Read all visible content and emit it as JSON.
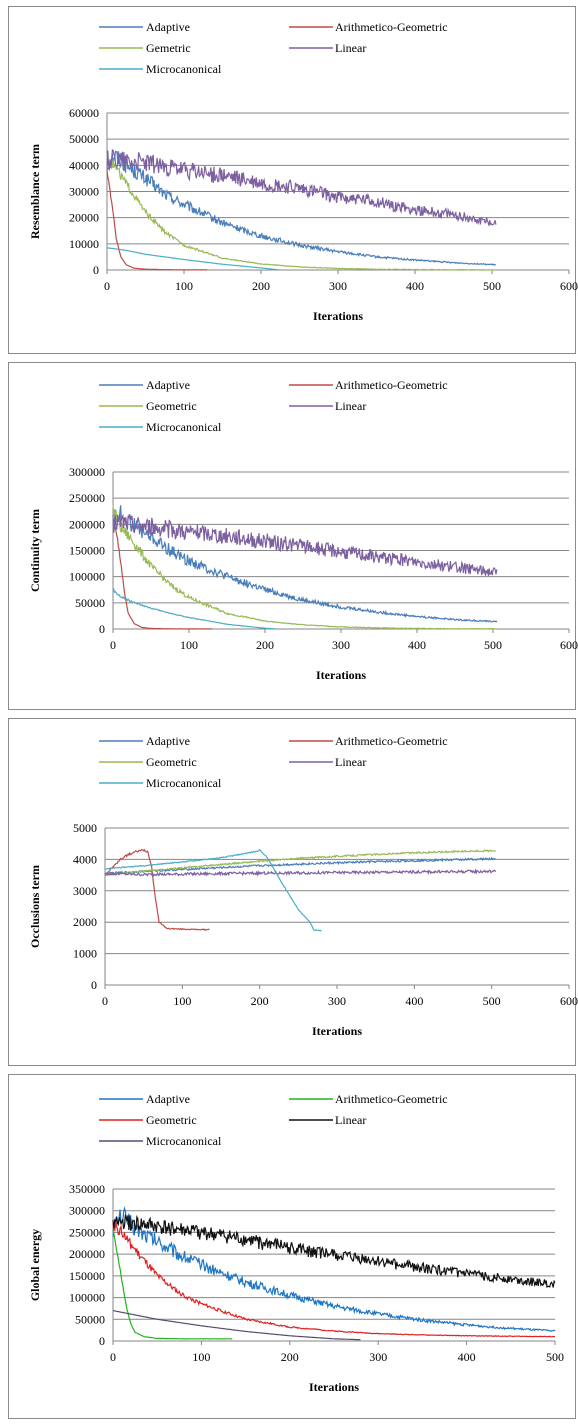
{
  "chart_data": [
    {
      "type": "line",
      "xlabel": "Iterations",
      "ylabel": "Resemblance term",
      "xlim": [
        0,
        600
      ],
      "ylim": [
        0,
        60000
      ],
      "xticks": [
        0,
        100,
        200,
        300,
        400,
        500,
        600
      ],
      "yticks": [
        0,
        10000,
        20000,
        30000,
        40000,
        50000,
        60000
      ],
      "grid": "horizontal",
      "legend": "top",
      "series": [
        {
          "name": "Adaptive",
          "color": "#4a7ebb",
          "noise": 0.08,
          "x": [
            0,
            10,
            25,
            50,
            75,
            100,
            150,
            200,
            250,
            300,
            350,
            400,
            450,
            505
          ],
          "y": [
            40000,
            44000,
            40000,
            35000,
            29000,
            25000,
            18000,
            13000,
            9500,
            7000,
            5000,
            3800,
            2800,
            2000
          ]
        },
        {
          "name": "Arithmetico-Geometric",
          "color": "#be4b48",
          "noise": 0.02,
          "x": [
            0,
            3,
            8,
            12,
            18,
            25,
            35,
            50,
            80,
            130
          ],
          "y": [
            38000,
            32000,
            22000,
            12000,
            5000,
            2000,
            700,
            300,
            100,
            50
          ]
        },
        {
          "name": "Gemetric",
          "color": "#98b954",
          "noise": 0.05,
          "x": [
            0,
            10,
            25,
            50,
            75,
            100,
            150,
            200,
            250,
            300,
            350,
            400,
            450,
            505
          ],
          "y": [
            42000,
            40000,
            33000,
            22000,
            14500,
            9500,
            4500,
            2300,
            1200,
            600,
            300,
            150,
            80,
            50
          ]
        },
        {
          "name": "Linear",
          "color": "#7d60a0",
          "noise": 0.09,
          "x": [
            0,
            10,
            25,
            50,
            100,
            150,
            200,
            250,
            300,
            350,
            400,
            450,
            505
          ],
          "y": [
            42000,
            43000,
            42000,
            41000,
            38000,
            36000,
            33000,
            31000,
            28000,
            26000,
            23000,
            21000,
            18000
          ]
        },
        {
          "name": "Microcanonical",
          "color": "#4bacc6",
          "noise": 0.0,
          "x": [
            0,
            25,
            50,
            100,
            150,
            200,
            225
          ],
          "y": [
            8500,
            7500,
            6000,
            4000,
            2200,
            800,
            0
          ]
        }
      ]
    },
    {
      "type": "line",
      "xlabel": "Iterations",
      "ylabel": "Continuity term",
      "xlim": [
        0,
        600
      ],
      "ylim": [
        0,
        300000
      ],
      "xticks": [
        0,
        100,
        200,
        300,
        400,
        500,
        600
      ],
      "yticks": [
        0,
        50000,
        100000,
        150000,
        200000,
        250000,
        300000
      ],
      "grid": "horizontal",
      "legend": "top",
      "series": [
        {
          "name": "Adaptive",
          "color": "#4a7ebb",
          "noise": 0.08,
          "x": [
            0,
            10,
            25,
            50,
            75,
            100,
            150,
            200,
            250,
            300,
            350,
            400,
            450,
            505
          ],
          "y": [
            210000,
            220000,
            200000,
            175000,
            150000,
            130000,
            100000,
            75000,
            55000,
            42000,
            32000,
            24000,
            18000,
            14000
          ]
        },
        {
          "name": "Arithmetico-Geometric",
          "color": "#be4b48",
          "noise": 0.02,
          "x": [
            0,
            5,
            10,
            15,
            20,
            28,
            38,
            50,
            80,
            130
          ],
          "y": [
            210000,
            180000,
            130000,
            70000,
            30000,
            10000,
            3000,
            1000,
            300,
            100
          ]
        },
        {
          "name": "Geometric",
          "color": "#98b954",
          "noise": 0.06,
          "x": [
            0,
            10,
            25,
            50,
            75,
            100,
            150,
            200,
            250,
            300,
            350,
            400,
            450,
            505
          ],
          "y": [
            230000,
            195000,
            170000,
            120000,
            85000,
            60000,
            30000,
            15000,
            8000,
            4000,
            2000,
            1000,
            500,
            300
          ]
        },
        {
          "name": "Linear",
          "color": "#7d60a0",
          "noise": 0.09,
          "x": [
            0,
            10,
            25,
            50,
            100,
            150,
            200,
            250,
            300,
            350,
            400,
            450,
            505
          ],
          "y": [
            200000,
            205000,
            200000,
            195000,
            185000,
            178000,
            168000,
            158000,
            148000,
            138000,
            128000,
            118000,
            108000
          ]
        },
        {
          "name": "Microcanonical",
          "color": "#4bacc6",
          "noise": 0.03,
          "x": [
            0,
            10,
            25,
            50,
            75,
            100,
            150,
            200,
            215
          ],
          "y": [
            75000,
            62000,
            52000,
            40000,
            30000,
            22000,
            9000,
            1500,
            0
          ]
        }
      ]
    },
    {
      "type": "line",
      "xlabel": "Iterations",
      "ylabel": "Occlusions term",
      "xlim": [
        0,
        600
      ],
      "ylim": [
        0,
        5000
      ],
      "xticks": [
        0,
        100,
        200,
        300,
        400,
        500,
        600
      ],
      "yticks": [
        0,
        1000,
        2000,
        3000,
        4000,
        5000
      ],
      "grid": "horizontal",
      "legend": "top",
      "series": [
        {
          "name": "Adaptive",
          "color": "#4a7ebb",
          "noise": 0.008,
          "x": [
            0,
            50,
            100,
            150,
            200,
            250,
            300,
            350,
            400,
            450,
            505
          ],
          "y": [
            3550,
            3620,
            3680,
            3740,
            3800,
            3850,
            3890,
            3930,
            3960,
            3990,
            4020
          ]
        },
        {
          "name": "Arithmetico-Geometric",
          "color": "#be4b48",
          "noise": 0.008,
          "x": [
            0,
            10,
            20,
            30,
            40,
            50,
            55,
            60,
            65,
            70,
            80,
            100,
            135
          ],
          "y": [
            3500,
            3750,
            4000,
            4150,
            4250,
            4300,
            4250,
            3800,
            2800,
            2000,
            1800,
            1780,
            1760
          ]
        },
        {
          "name": "Geometric",
          "color": "#98b954",
          "noise": 0.006,
          "x": [
            0,
            50,
            100,
            150,
            200,
            250,
            300,
            350,
            400,
            450,
            505
          ],
          "y": [
            3500,
            3620,
            3730,
            3840,
            3940,
            4030,
            4100,
            4160,
            4210,
            4250,
            4280
          ]
        },
        {
          "name": "Linear",
          "color": "#7d60a0",
          "noise": 0.012,
          "x": [
            0,
            50,
            100,
            150,
            200,
            250,
            300,
            350,
            400,
            450,
            505
          ],
          "y": [
            3550,
            3520,
            3530,
            3550,
            3560,
            3570,
            3580,
            3590,
            3600,
            3610,
            3620
          ]
        },
        {
          "name": "Microcanonical",
          "color": "#4bacc6",
          "noise": 0.004,
          "x": [
            0,
            50,
            100,
            150,
            195,
            200,
            210,
            230,
            250,
            265,
            270,
            280
          ],
          "y": [
            3700,
            3800,
            3920,
            4050,
            4250,
            4300,
            4050,
            3200,
            2400,
            2000,
            1750,
            1730
          ]
        }
      ]
    },
    {
      "type": "line",
      "xlabel": "Iterations",
      "ylabel": "Global energy",
      "xlim": [
        0,
        500
      ],
      "ylim": [
        0,
        350000
      ],
      "xticks": [
        0,
        100,
        200,
        300,
        400,
        500
      ],
      "yticks": [
        0,
        50000,
        100000,
        150000,
        200000,
        250000,
        300000,
        350000
      ],
      "grid": "horizontal",
      "legend": "top",
      "series": [
        {
          "name": "Adaptive",
          "color": "#1f77c4",
          "noise": 0.08,
          "x": [
            0,
            10,
            25,
            50,
            75,
            100,
            150,
            200,
            250,
            300,
            350,
            400,
            450,
            500
          ],
          "y": [
            260000,
            290000,
            260000,
            230000,
            200000,
            175000,
            135000,
            105000,
            80000,
            62000,
            48000,
            37000,
            29000,
            23000
          ]
        },
        {
          "name": "Arithmetico-Geometric",
          "color": "#22b422",
          "noise": 0.02,
          "x": [
            0,
            5,
            10,
            15,
            20,
            25,
            35,
            50,
            80,
            135
          ],
          "y": [
            260000,
            200000,
            140000,
            80000,
            40000,
            20000,
            10000,
            6000,
            5000,
            5000
          ]
        },
        {
          "name": "Geometric",
          "color": "#e02020",
          "noise": 0.05,
          "x": [
            0,
            10,
            25,
            50,
            75,
            100,
            150,
            200,
            250,
            300,
            350,
            400,
            450,
            500
          ],
          "y": [
            270000,
            250000,
            210000,
            150000,
            110000,
            85000,
            50000,
            32000,
            23000,
            17000,
            14000,
            12000,
            11000,
            10000
          ]
        },
        {
          "name": "Linear",
          "color": "#111111",
          "noise": 0.07,
          "x": [
            0,
            10,
            25,
            50,
            100,
            150,
            200,
            250,
            300,
            350,
            400,
            450,
            500
          ],
          "y": [
            270000,
            275000,
            268000,
            262000,
            248000,
            232000,
            215000,
            198000,
            183000,
            168000,
            155000,
            142000,
            130000
          ]
        },
        {
          "name": "Microcanonical",
          "color": "#5a4a6e",
          "noise": 0.0,
          "x": [
            0,
            25,
            50,
            100,
            150,
            200,
            250,
            280
          ],
          "y": [
            70000,
            60000,
            50000,
            35000,
            22000,
            12000,
            5000,
            3000
          ]
        }
      ]
    }
  ]
}
